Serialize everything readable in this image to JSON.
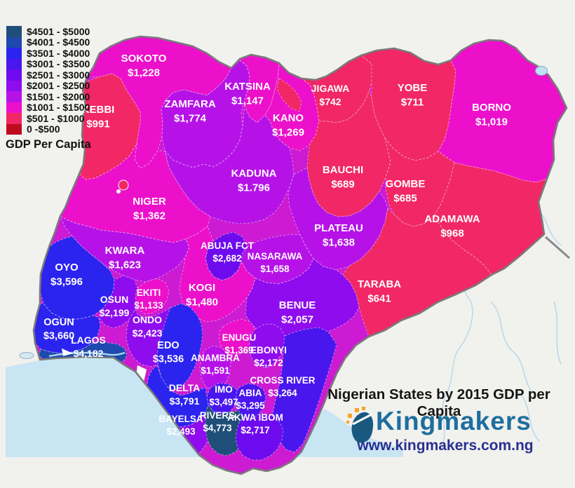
{
  "title": "Nigerian States by 2015 GDP per Capita",
  "legend": {
    "title": "GDP Per Capita",
    "items": [
      {
        "label": "$4501 - $5000",
        "color": "#1F4E79"
      },
      {
        "label": "$4001 - $4500",
        "color": "#1E49AE"
      },
      {
        "label": "$3501 - $4000",
        "color": "#2B23EE"
      },
      {
        "label": "$3001 - $3500",
        "color": "#4A16EE"
      },
      {
        "label": "$2501 - $3000",
        "color": "#6E0BEE"
      },
      {
        "label": "$2001 - $2500",
        "color": "#8F0CEE"
      },
      {
        "label": "$1501 - $2000",
        "color": "#B612E8"
      },
      {
        "label": "$1001 - $1500",
        "color": "#EC10CB"
      },
      {
        "label": "$501 - $1000",
        "color": "#F22765"
      },
      {
        "label": "0 -$500",
        "color": "#C00A20"
      }
    ]
  },
  "branding": {
    "logo_text": "Kingmakers",
    "url": "www.kingmakers.com.ng",
    "logo_color": "#1E6E9F",
    "url_color": "#2A3090",
    "icon_color": "#19597F",
    "icon_accent": "#F5A427"
  },
  "palette": {
    "background": "#F1F1EE",
    "ocean": "#C8E5F4",
    "country_outline": "#7A7A7A",
    "river": "#AFD2E8"
  },
  "chart_data": {
    "type": "choropleth-map",
    "region": "Nigeria",
    "metric": "2015 GDP per Capita (USD)",
    "states": [
      {
        "name": "SOKOTO",
        "value": "$1,228",
        "band": 7
      },
      {
        "name": "KEBBI",
        "value": "$991",
        "band": 8
      },
      {
        "name": "ZAMFARA",
        "value": "$1,774",
        "band": 6
      },
      {
        "name": "KATSINA",
        "value": "$1,147",
        "band": 7
      },
      {
        "name": "KANO",
        "value": "$1,269",
        "band": 7
      },
      {
        "name": "JIGAWA",
        "value": "$742",
        "band": 8
      },
      {
        "name": "YOBE",
        "value": "$711",
        "band": 8
      },
      {
        "name": "BORNO",
        "value": "$1,019",
        "band": 7
      },
      {
        "name": "KADUNA",
        "value": "$1.796",
        "band": 6
      },
      {
        "name": "BAUCHI",
        "value": "$689",
        "band": 8
      },
      {
        "name": "GOMBE",
        "value": "$685",
        "band": 8
      },
      {
        "name": "ADAMAWA",
        "value": "$968",
        "band": 8
      },
      {
        "name": "NIGER",
        "value": "$1,362",
        "band": 7
      },
      {
        "name": "PLATEAU",
        "value": "$1,638",
        "band": 6
      },
      {
        "name": "TARABA",
        "value": "$641",
        "band": 8
      },
      {
        "name": "KWARA",
        "value": "$1,623",
        "band": 6
      },
      {
        "name": "ABUJA FCT",
        "value": "$2,682",
        "band": 4
      },
      {
        "name": "NASARAWA",
        "value": "$1,658",
        "band": 6
      },
      {
        "name": "KOGI",
        "value": "$1,480",
        "band": 7
      },
      {
        "name": "BENUE",
        "value": "$2,057",
        "band": 5
      },
      {
        "name": "OYO",
        "value": "$3,596",
        "band": 2
      },
      {
        "name": "OSUN",
        "value": "$2,199",
        "band": 5
      },
      {
        "name": "EKITI",
        "value": "$1,133",
        "band": 7
      },
      {
        "name": "ONDO",
        "value": "$2,423",
        "band": 5
      },
      {
        "name": "OGUN",
        "value": "$3,660",
        "band": 2
      },
      {
        "name": "LAGOS",
        "value": "$4,182",
        "band": 1
      },
      {
        "name": "EDO",
        "value": "$3,536",
        "band": 2
      },
      {
        "name": "ENUGU",
        "value": "$1,369",
        "band": 7
      },
      {
        "name": "EBONYI",
        "value": "$2,172",
        "band": 5
      },
      {
        "name": "ANAMBRA",
        "value": "$1,591",
        "band": 6
      },
      {
        "name": "CROSS RIVER",
        "value": "$3,264",
        "band": 3
      },
      {
        "name": "IMO",
        "value": "$3,497",
        "band": 3
      },
      {
        "name": "ABIA",
        "value": "$3,295",
        "band": 3
      },
      {
        "name": "DELTA",
        "value": "$3,791",
        "band": 2
      },
      {
        "name": "BAYELSA",
        "value": "$2,493",
        "band": 5
      },
      {
        "name": "RIVERS",
        "value": "$4,773",
        "band": 0
      },
      {
        "name": "AKWA IBOM",
        "value": "$2,717",
        "band": 4
      }
    ]
  }
}
